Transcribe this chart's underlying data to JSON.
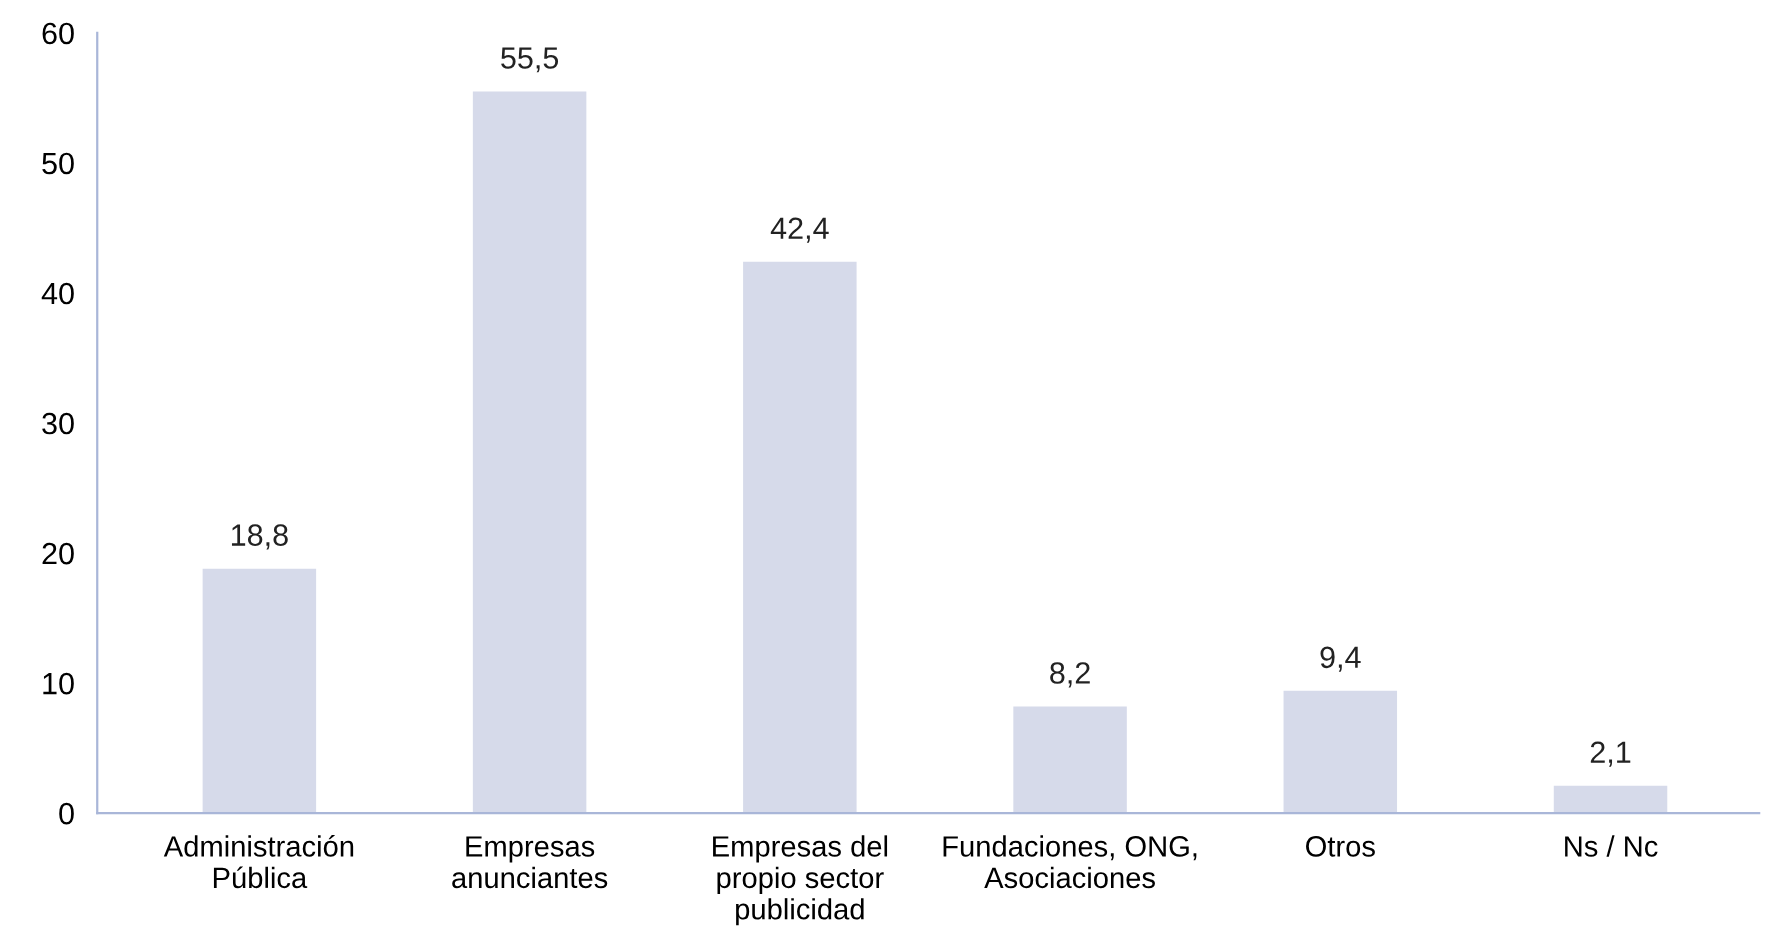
{
  "chart_data": {
    "type": "bar",
    "categories": [
      "Administración\nPública",
      "Empresas\nanunciantes",
      "Empresas del\npropio sector\npublicidad",
      "Fundaciones, ONG,\nAsociaciones",
      "Otros",
      "Ns / Nc"
    ],
    "values": [
      18.8,
      55.5,
      42.4,
      8.2,
      9.4,
      2.1
    ],
    "value_labels": [
      "18,8",
      "55,5",
      "42,4",
      "8,2",
      "9,4",
      "2,1"
    ],
    "color": "#d6daea",
    "ylim": [
      0,
      60
    ],
    "yticks": [
      0,
      10,
      20,
      30,
      40,
      50,
      60
    ],
    "grid": false,
    "legend": false
  }
}
